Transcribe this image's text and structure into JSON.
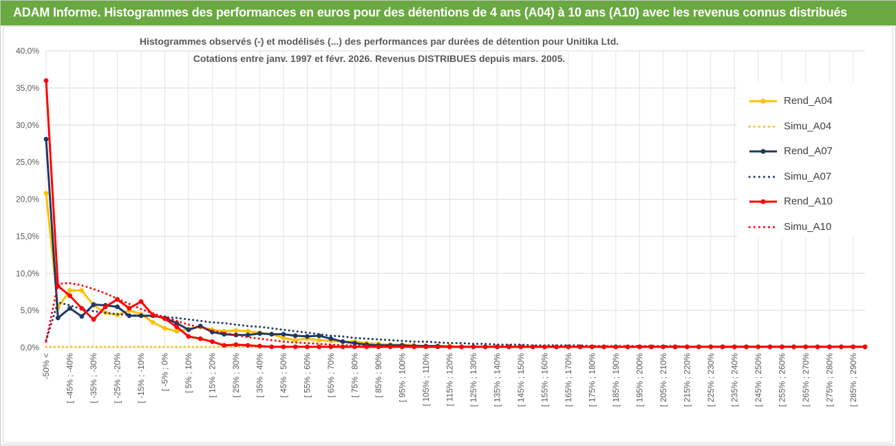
{
  "header": {
    "title": "ADAM Informe. Histogrammes des performances en euros pour des détentions de 4 ans (A04) à 10 ans (A10) avec les revenus connus distribués"
  },
  "colors": {
    "header_bg": "#6aa842",
    "A04": "#ffc000",
    "A07": "#1f3864",
    "A10": "#ff0000"
  },
  "chart_data": {
    "type": "line",
    "title_lines": [
      "Histogrammes observés (-) et modélisés (...) des performances par durées de détention pour Unitika Ltd.",
      "Cotations entre janv. 1997 et févr. 2026. Revenus DISTRIBUES depuis mars. 2005."
    ],
    "xlabel": "",
    "ylabel": "",
    "ylim": [
      0,
      0.4
    ],
    "y_ticks": [
      "0,0%",
      "5,0%",
      "10,0%",
      "15,0%",
      "20,0%",
      "25,0%",
      "30,0%",
      "35,0%",
      "40,0%"
    ],
    "grid": true,
    "legend_position": "right",
    "x_tick_labels": [
      "-50% <",
      "[ -45% ; -40%",
      "[ -35% ; -30%",
      "[ -25% ; -20%",
      "[ -15% ; -10%",
      "[ -5% ; 0%",
      "[ 5% ; 10%",
      "[ 15% ; 20%",
      "[ 25% ; 30%",
      "[ 35% ; 40%",
      "[ 45% ; 50%",
      "[ 55% ; 60%",
      "[ 65% ; 70%",
      "[ 75% ; 80%",
      "[ 85% ; 90%",
      "[ 95% ; 100%",
      "[ 105% ; 110%",
      "[ 115% ; 120%",
      "[ 125% ; 130%",
      "[ 135% ; 140%",
      "[ 145% ; 150%",
      "[ 155% ; 160%",
      "[ 165% ; 170%",
      "[ 175% ; 180%",
      "[ 185% ; 190%",
      "[ 195% ; 200%",
      "[ 205% ; 210%",
      "[ 215% ; 220%",
      "[ 225% ; 230%",
      "[ 235% ; 240%",
      "[ 245% ; 250%",
      "[ 255% ; 260%",
      "[ 265% ; 270%",
      "[ 275% ; 280%",
      "[ 285% ; 290%"
    ],
    "n_bins": 70,
    "series": [
      {
        "name": "Rend_A04",
        "style": "solid",
        "color": "#ffc000",
        "values": [
          0.208,
          0.054,
          0.077,
          0.077,
          0.057,
          0.047,
          0.044,
          0.05,
          0.045,
          0.034,
          0.026,
          0.022,
          0.025,
          0.028,
          0.024,
          0.022,
          0.023,
          0.022,
          0.02,
          0.018,
          0.013,
          0.01,
          0.012,
          0.01,
          0.009,
          0.008,
          0.008,
          0.006,
          0.005,
          0.004,
          0.004,
          0.003,
          0.002,
          0.002,
          0.002,
          0.001,
          0.001,
          0.001,
          0.001,
          0.001,
          0.001,
          0.001,
          0.001,
          0.001,
          0.001,
          0.001,
          0.001,
          0.001,
          0.001,
          0.001,
          0.001,
          0.001,
          0.001,
          0.001,
          0.001,
          0.001,
          0.001,
          0.001,
          0.001,
          0.001,
          0.001,
          0.001,
          0.001,
          0.001,
          0.001,
          0.001,
          0.001,
          0.001,
          0.001,
          0.001
        ]
      },
      {
        "name": "Simu_A04",
        "style": "dotted",
        "color": "#ffc000",
        "values": [
          0.001,
          0.001,
          0.001,
          0.001,
          0.001,
          0.001,
          0.001,
          0.001,
          0.001,
          0.001,
          0.001,
          0.001,
          0.001,
          0.001,
          0.001,
          0.001,
          0.001,
          0.001,
          0.001,
          0.001,
          0.001,
          0.001,
          0.001,
          0.001,
          0.001,
          0.001,
          0.001,
          0.001,
          0.001,
          0.001,
          0.001,
          0.001,
          0.001,
          0.001,
          0.001,
          0.001,
          0.001,
          0.001,
          0.001,
          0.001,
          0.001,
          0.001,
          0.001,
          0.001,
          0.001,
          0.001,
          0.001,
          0.001,
          0.001,
          0.001,
          0.001,
          0.001,
          0.001,
          0.001,
          0.001,
          0.001,
          0.001,
          0.001,
          0.001,
          0.001,
          0.001,
          0.001,
          0.001,
          0.001,
          0.001,
          0.001,
          0.001,
          0.001,
          0.001,
          0.001
        ]
      },
      {
        "name": "Rend_A07",
        "style": "solid",
        "color": "#1f3864",
        "values": [
          0.281,
          0.04,
          0.053,
          0.042,
          0.058,
          0.057,
          0.055,
          0.043,
          0.043,
          0.043,
          0.04,
          0.033,
          0.024,
          0.029,
          0.021,
          0.018,
          0.017,
          0.017,
          0.019,
          0.018,
          0.018,
          0.016,
          0.015,
          0.016,
          0.012,
          0.008,
          0.006,
          0.004,
          0.003,
          0.003,
          0.003,
          0.002,
          0.002,
          0.002,
          0.001,
          0.001,
          0.001,
          0.001,
          0.001,
          0.001,
          0.001,
          0.001,
          0.001,
          0.001,
          0.001,
          0.001,
          0.001,
          0.001,
          0.001,
          0.001,
          0.001,
          0.001,
          0.001,
          0.001,
          0.001,
          0.001,
          0.001,
          0.001,
          0.001,
          0.001,
          0.001,
          0.001,
          0.001,
          0.001,
          0.001,
          0.001,
          0.001,
          0.001,
          0.001,
          0.001
        ]
      },
      {
        "name": "Simu_A07",
        "style": "dotted",
        "color": "#1f3864",
        "values": [
          0.01,
          0.061,
          0.057,
          0.052,
          0.049,
          0.047,
          0.045,
          0.044,
          0.043,
          0.042,
          0.041,
          0.04,
          0.038,
          0.036,
          0.034,
          0.033,
          0.031,
          0.029,
          0.028,
          0.026,
          0.024,
          0.022,
          0.02,
          0.018,
          0.016,
          0.015,
          0.013,
          0.012,
          0.011,
          0.01,
          0.009,
          0.008,
          0.008,
          0.007,
          0.006,
          0.006,
          0.005,
          0.005,
          0.004,
          0.004,
          0.004,
          0.003,
          0.003,
          0.003,
          0.003,
          0.003,
          0.002,
          0.002,
          0.002,
          0.002,
          0.002,
          0.002,
          0.002,
          0.002,
          0.001,
          0.001,
          0.001,
          0.001,
          0.001,
          0.001,
          0.001,
          0.001,
          0.001,
          0.001,
          0.001,
          0.001,
          0.001,
          0.001,
          0.001,
          0.001
        ]
      },
      {
        "name": "Rend_A10",
        "style": "solid",
        "color": "#ff0000",
        "values": [
          0.36,
          0.083,
          0.07,
          0.053,
          0.038,
          0.055,
          0.065,
          0.053,
          0.062,
          0.044,
          0.039,
          0.028,
          0.015,
          0.012,
          0.008,
          0.003,
          0.004,
          0.003,
          0.002,
          0.001,
          0.001,
          0.001,
          0.001,
          0.001,
          0.001,
          0.001,
          0.001,
          0.001,
          0.001,
          0.001,
          0.001,
          0.001,
          0.001,
          0.001,
          0.001,
          0.001,
          0.001,
          0.001,
          0.001,
          0.001,
          0.001,
          0.001,
          0.001,
          0.001,
          0.001,
          0.001,
          0.001,
          0.001,
          0.001,
          0.001,
          0.001,
          0.001,
          0.001,
          0.001,
          0.001,
          0.001,
          0.001,
          0.001,
          0.001,
          0.001,
          0.001,
          0.001,
          0.001,
          0.001,
          0.001,
          0.001,
          0.001,
          0.001,
          0.001,
          0.001
        ]
      },
      {
        "name": "Simu_A10",
        "style": "dotted",
        "color": "#ff0000",
        "values": [
          0.008,
          0.086,
          0.087,
          0.084,
          0.079,
          0.073,
          0.066,
          0.059,
          0.052,
          0.046,
          0.041,
          0.036,
          0.031,
          0.027,
          0.023,
          0.02,
          0.017,
          0.014,
          0.012,
          0.01,
          0.008,
          0.007,
          0.006,
          0.005,
          0.004,
          0.003,
          0.003,
          0.002,
          0.002,
          0.002,
          0.001,
          0.001,
          0.001,
          0.001,
          0.001,
          0.001,
          0.001,
          0.001,
          0.001,
          0.001,
          0.001,
          0.001,
          0.001,
          0.001,
          0.001,
          0.001,
          0.001,
          0.001,
          0.001,
          0.001,
          0.001,
          0.001,
          0.001,
          0.001,
          0.001,
          0.001,
          0.001,
          0.001,
          0.001,
          0.001,
          0.001,
          0.001,
          0.001,
          0.001,
          0.001,
          0.001,
          0.001,
          0.001,
          0.001,
          0.001
        ]
      }
    ]
  }
}
